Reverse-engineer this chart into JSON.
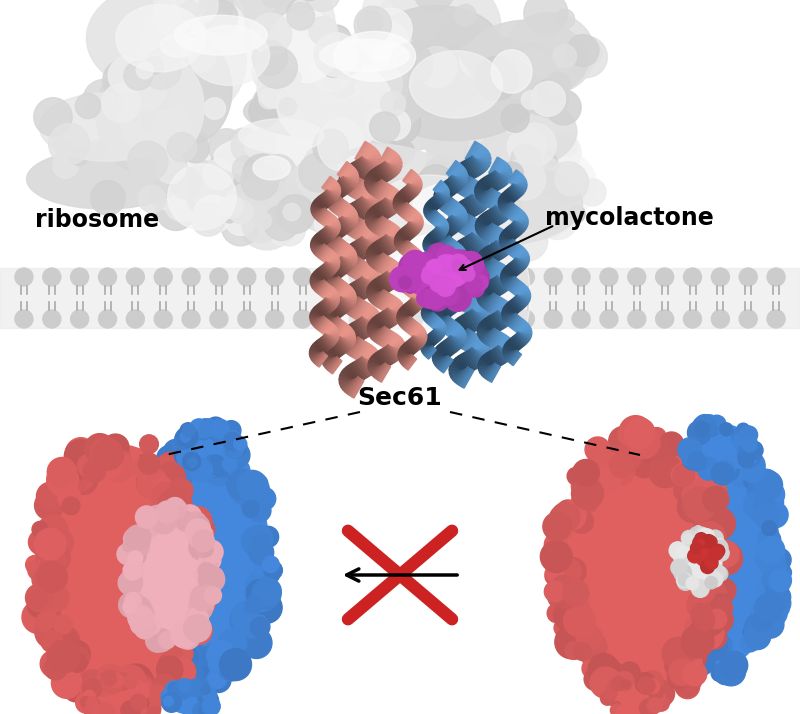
{
  "background_color": "#ffffff",
  "labels": {
    "ribosome": "ribosome",
    "mycolactone": "mycolactone",
    "sec61": "Sec61"
  },
  "font_sizes": {
    "ribosome": 17,
    "mycolactone": 17,
    "sec61": 18
  },
  "cross_color": "#cc2222",
  "cross_lw": 9,
  "membrane_color": "#cccccc",
  "mem_head_color": "#c0c0c0",
  "mem_tail_color": "#d8d8d8"
}
